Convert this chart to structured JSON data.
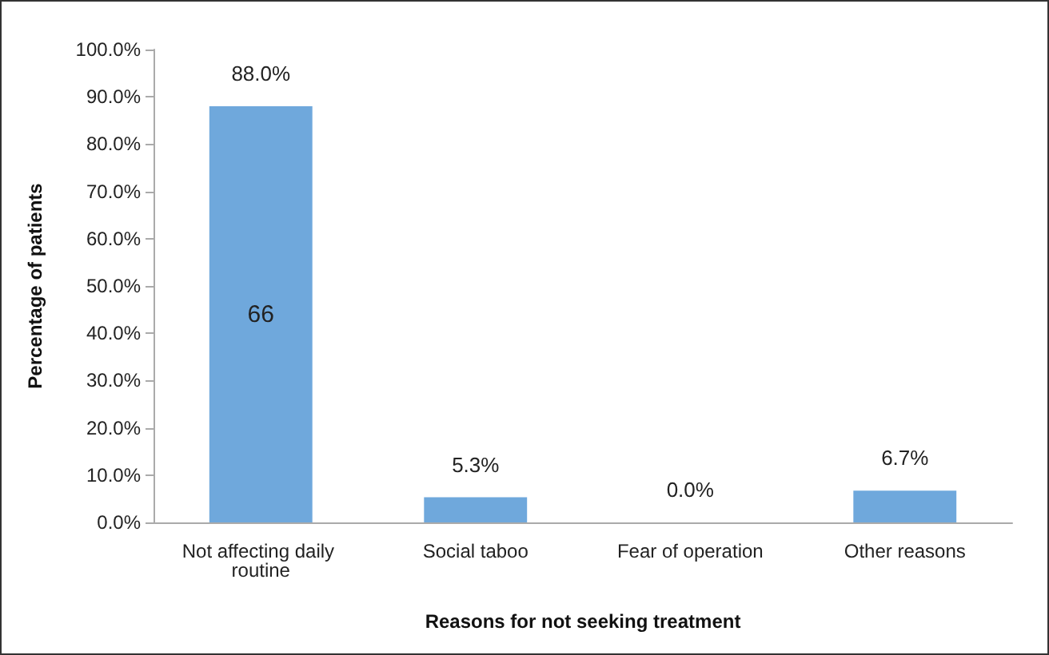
{
  "chart_data": {
    "type": "bar",
    "xlabel": "Reasons for not seeking treatment",
    "ylabel": "Percentage of patients",
    "categories": [
      "Not affecting daily routine",
      "Social taboo",
      "Fear of operation",
      "Other reasons"
    ],
    "values": [
      88.0,
      5.3,
      0.0,
      6.7
    ],
    "color": "#6fa8dc",
    "value_labels": [
      "88.0%",
      "5.3%",
      "0.0%",
      "6.7%"
    ],
    "annotations": [
      "66"
    ],
    "ylim": [
      0,
      100
    ],
    "yticks": [
      {
        "value": 0,
        "label": "0.0%"
      },
      {
        "value": 10,
        "label": "10.0%"
      },
      {
        "value": 20,
        "label": "20.0%"
      },
      {
        "value": 30,
        "label": "30.0%"
      },
      {
        "value": 40,
        "label": "40.0%"
      },
      {
        "value": 50,
        "label": "50.0%"
      },
      {
        "value": 60,
        "label": "60.0%"
      },
      {
        "value": 70,
        "label": "70.0%"
      },
      {
        "value": 80,
        "label": "80.0%"
      },
      {
        "value": 90,
        "label": "90.0%"
      },
      {
        "value": 100,
        "label": "100.0%"
      }
    ],
    "grid": false
  }
}
